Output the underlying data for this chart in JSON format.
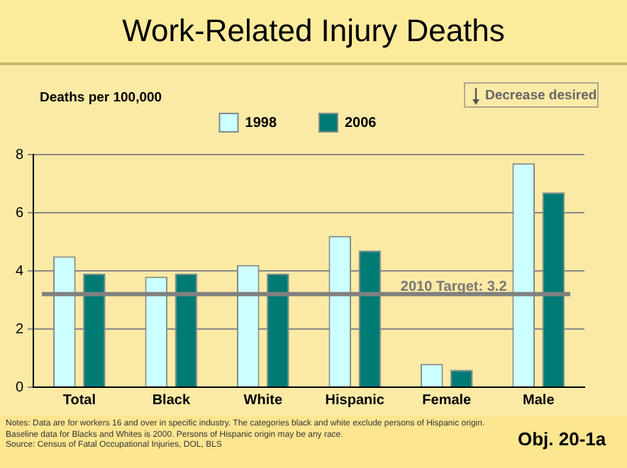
{
  "chart_data": {
    "type": "bar",
    "title": "Work-Related Injury Deaths",
    "ylabel": "Deaths per 100,000",
    "categories": [
      "Total",
      "Black",
      "White",
      "Hispanic",
      "Female",
      "Male"
    ],
    "series": [
      {
        "name": "1998",
        "color": "#ccffff",
        "values": [
          4.5,
          3.8,
          4.2,
          5.2,
          0.8,
          7.7
        ]
      },
      {
        "name": "2006",
        "color": "#007a74",
        "values": [
          3.9,
          3.9,
          3.9,
          4.7,
          0.6,
          6.7
        ]
      }
    ],
    "ylim": [
      0,
      8
    ],
    "yticks": [
      0,
      2,
      4,
      6,
      8
    ],
    "grid": "y",
    "legend": "top",
    "ref_lines": [
      {
        "axis": "y",
        "value": 3.2,
        "label": "2010 Target: 3.2",
        "color": "#808080"
      }
    ],
    "annotations": [
      "Decrease desired",
      "Notes: Data are for workers 16 and over in specific industry. The categories black and white exclude persons of Hispanic origin. Baseline data for Blacks and Whites is 2000.  Persons of Hispanic origin may be any race.",
      "Source: Census of Fatal Occupational Injuries, DOL, BLS",
      "Obj. 20-1a"
    ]
  }
}
